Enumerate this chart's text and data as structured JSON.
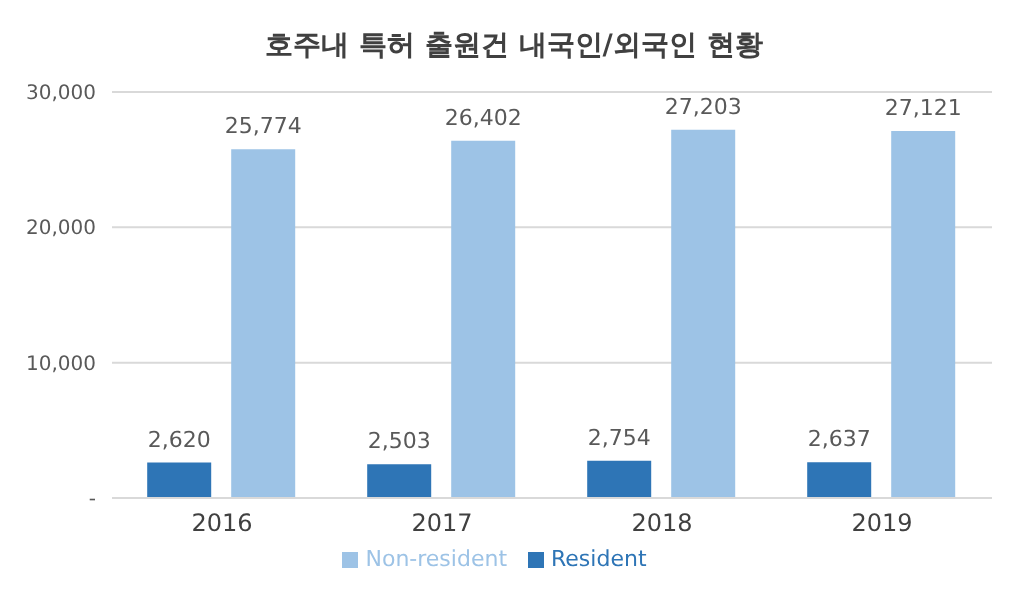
{
  "chart_data": {
    "type": "bar",
    "title": "호주내 특허 출원건 내국인/외국인 현황",
    "categories": [
      "2016",
      "2017",
      "2018",
      "2019"
    ],
    "series": [
      {
        "name": "Resident",
        "color": "#2e75b6",
        "values": [
          2620,
          2503,
          2754,
          2637
        ],
        "value_labels": [
          "2,620",
          "2,503",
          "2,754",
          "2,637"
        ]
      },
      {
        "name": "Non-resident",
        "color": "#9dc3e6",
        "values": [
          25774,
          26402,
          27203,
          27121
        ],
        "value_labels": [
          "25,774",
          "26,402",
          "27,203",
          "27,121"
        ]
      }
    ],
    "ylim": [
      0,
      30000
    ],
    "yticks": [
      {
        "value": 0,
        "label": "-"
      },
      {
        "value": 10000,
        "label": "10,000"
      },
      {
        "value": 20000,
        "label": "20,000"
      },
      {
        "value": 30000,
        "label": "30,000"
      }
    ],
    "grid": "y",
    "legend": "bottom"
  }
}
